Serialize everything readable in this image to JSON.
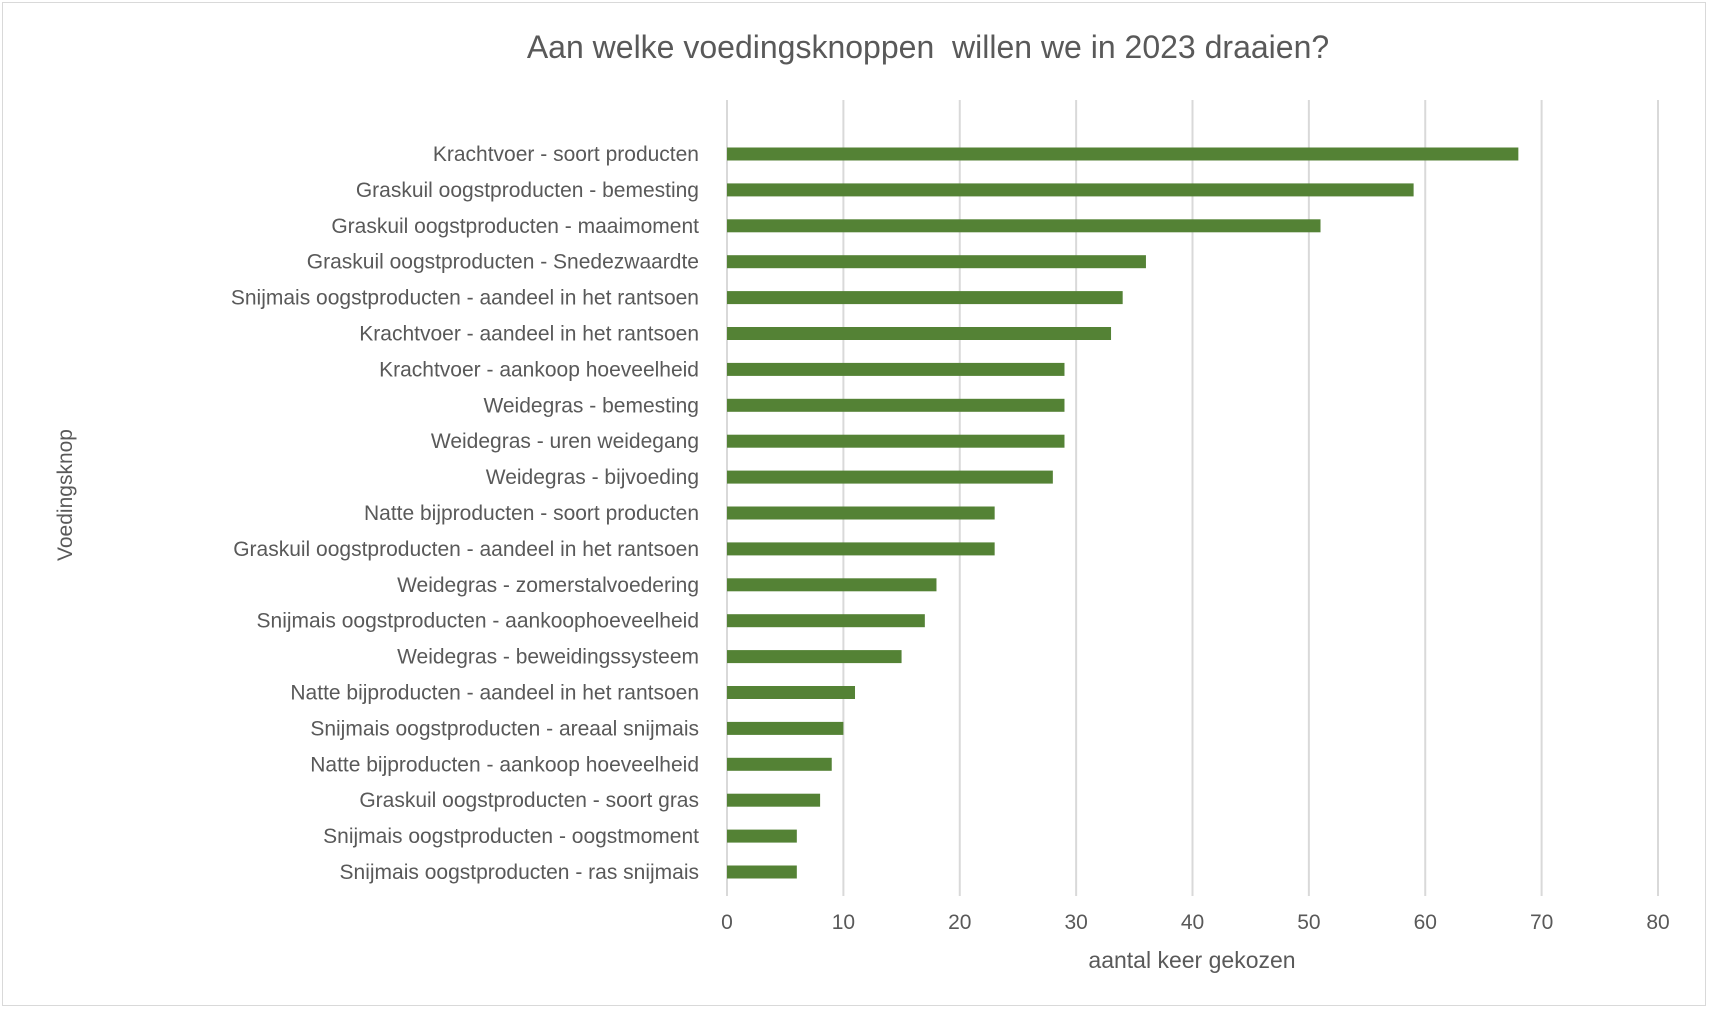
{
  "chart_data": {
    "type": "bar",
    "orientation": "horizontal",
    "title": "Aan welke voedingsknoppen  willen we in 2023 draaien?",
    "xlabel": "aantal keer gekozen",
    "ylabel": "Voedingsknop",
    "xlim": [
      0,
      80
    ],
    "xticks": [
      0,
      10,
      20,
      30,
      40,
      50,
      60,
      70,
      80
    ],
    "grid": "vertical",
    "bar_color": "#548235",
    "categories": [
      "Krachtvoer - soort producten",
      "Graskuil oogstproducten - bemesting",
      "Graskuil oogstproducten - maaimoment",
      "Graskuil oogstproducten - Snedezwaardte",
      "Snijmais oogstproducten - aandeel in het rantsoen",
      "Krachtvoer - aandeel in het rantsoen",
      "Krachtvoer - aankoop hoeveelheid",
      "Weidegras - bemesting",
      "Weidegras - uren weidegang",
      "Weidegras - bijvoeding",
      "Natte bijproducten - soort producten",
      "Graskuil oogstproducten - aandeel in het rantsoen",
      "Weidegras - zomerstalvoedering",
      "Snijmais oogstproducten - aankoophoeveelheid",
      "Weidegras - beweidingssysteem",
      "Natte bijproducten - aandeel in het rantsoen",
      "Snijmais oogstproducten - areaal snijmais",
      "Natte bijproducten - aankoop hoeveelheid",
      "Graskuil oogstproducten - soort gras",
      "Snijmais oogstproducten - oogstmoment",
      "Snijmais oogstproducten - ras snijmais"
    ],
    "values": [
      68,
      59,
      51,
      36,
      34,
      33,
      29,
      29,
      29,
      28,
      23,
      23,
      18,
      17,
      15,
      11,
      10,
      9,
      8,
      6,
      6
    ]
  }
}
